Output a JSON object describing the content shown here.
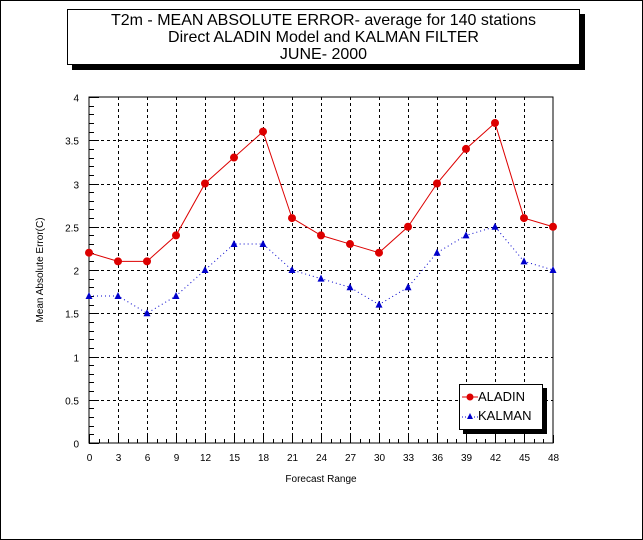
{
  "title": {
    "line1": "T2m - MEAN ABSOLUTE ERROR- average for 140 stations",
    "line2": "Direct ALADIN  Model and  KALMAN FILTER",
    "line3": "JUNE- 2000"
  },
  "chart_data": {
    "type": "line",
    "title": "T2m - MEAN ABSOLUTE ERROR- average for 140 stations / Direct ALADIN  Model and  KALMAN FILTER / JUNE- 2000",
    "xlabel": "Forecast Range",
    "ylabel": "Mean Absolute Error(C)",
    "x": [
      0,
      3,
      6,
      9,
      12,
      15,
      18,
      21,
      24,
      27,
      30,
      33,
      36,
      39,
      42,
      45,
      48
    ],
    "xticks": [
      "0",
      "3",
      "6",
      "9",
      "12",
      "15",
      "18",
      "21",
      "24",
      "27",
      "30",
      "33",
      "36",
      "39",
      "42",
      "45",
      "48"
    ],
    "yticks": [
      "0",
      "0.5",
      "1",
      "1.5",
      "2",
      "2.5",
      "3",
      "3.5",
      "4"
    ],
    "xlim": [
      0,
      48
    ],
    "ylim": [
      0,
      4
    ],
    "grid": true,
    "legend_position": "bottom-right",
    "series": [
      {
        "name": "ALADIN",
        "color": "#dd0000",
        "marker": "circle",
        "line": "solid",
        "values": [
          2.2,
          2.1,
          2.1,
          2.4,
          3.0,
          3.3,
          3.6,
          2.6,
          2.4,
          2.3,
          2.2,
          2.5,
          3.0,
          3.4,
          3.7,
          2.6,
          2.5
        ]
      },
      {
        "name": "KALMAN",
        "color": "#0000cc",
        "marker": "triangle",
        "line": "dotted",
        "values": [
          1.7,
          1.7,
          1.5,
          1.7,
          2.0,
          2.3,
          2.3,
          2.0,
          1.9,
          1.8,
          1.6,
          1.8,
          2.2,
          2.4,
          2.5,
          2.1,
          2.0
        ]
      }
    ]
  }
}
